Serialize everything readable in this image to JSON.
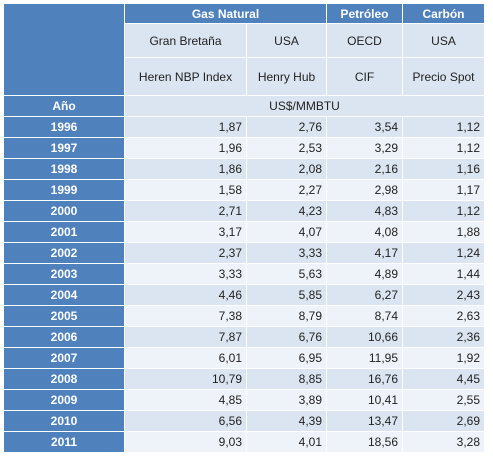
{
  "header": {
    "gas_natural": "Gas Natural",
    "petroleo": "Petróleo",
    "carbon": "Carbón"
  },
  "subheader": {
    "regions": [
      "Gran Bretaña",
      "USA",
      "OECD",
      "USA"
    ],
    "indices": [
      "Heren NBP Index",
      "Henry Hub",
      "CIF",
      "Precio Spot"
    ]
  },
  "year_label": "Año",
  "unit_label": "US$/MMBTU",
  "rows": [
    {
      "year": "1996",
      "values": [
        "1,87",
        "2,76",
        "3,54",
        "1,12"
      ]
    },
    {
      "year": "1997",
      "values": [
        "1,96",
        "2,53",
        "3,29",
        "1,12"
      ]
    },
    {
      "year": "1998",
      "values": [
        "1,86",
        "2,08",
        "2,16",
        "1,16"
      ]
    },
    {
      "year": "1999",
      "values": [
        "1,58",
        "2,27",
        "2,98",
        "1,17"
      ]
    },
    {
      "year": "2000",
      "values": [
        "2,71",
        "4,23",
        "4,83",
        "1,12"
      ]
    },
    {
      "year": "2001",
      "values": [
        "3,17",
        "4,07",
        "4,08",
        "1,88"
      ]
    },
    {
      "year": "2002",
      "values": [
        "2,37",
        "3,33",
        "4,17",
        "1,24"
      ]
    },
    {
      "year": "2003",
      "values": [
        "3,33",
        "5,63",
        "4,89",
        "1,44"
      ]
    },
    {
      "year": "2004",
      "values": [
        "4,46",
        "5,85",
        "6,27",
        "2,43"
      ]
    },
    {
      "year": "2005",
      "values": [
        "7,38",
        "8,79",
        "8,74",
        "2,63"
      ]
    },
    {
      "year": "2006",
      "values": [
        "7,87",
        "6,76",
        "10,66",
        "2,36"
      ]
    },
    {
      "year": "2007",
      "values": [
        "6,01",
        "6,95",
        "11,95",
        "1,92"
      ]
    },
    {
      "year": "2008",
      "values": [
        "10,79",
        "8,85",
        "16,76",
        "4,45"
      ]
    },
    {
      "year": "2009",
      "values": [
        "4,85",
        "3,89",
        "10,41",
        "2,55"
      ]
    },
    {
      "year": "2010",
      "values": [
        "6,56",
        "4,39",
        "13,47",
        "2,69"
      ]
    },
    {
      "year": "2011",
      "values": [
        "9,03",
        "4,01",
        "18,56",
        "3,28"
      ]
    }
  ]
}
